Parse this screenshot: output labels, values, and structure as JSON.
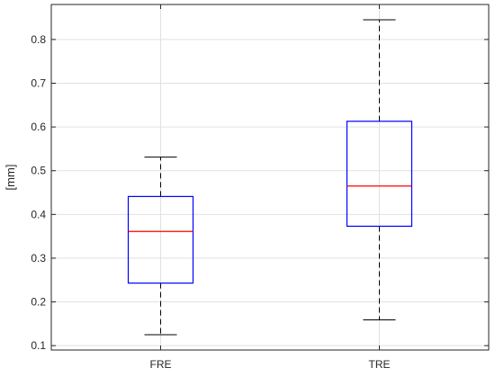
{
  "chart_data": {
    "type": "boxplot",
    "title": "",
    "xlabel": "",
    "ylabel": "[mm]",
    "ylim": [
      0.09,
      0.88
    ],
    "yticks": [
      0.1,
      0.2,
      0.3,
      0.4,
      0.5,
      0.6,
      0.7,
      0.8
    ],
    "ytick_labels": [
      "0.1",
      "0.2",
      "0.3",
      "0.4",
      "0.5",
      "0.6",
      "0.7",
      "0.8"
    ],
    "grid": true,
    "categories": [
      "FRE",
      "TRE"
    ],
    "boxes": [
      {
        "label": "FRE",
        "whisker_low": 0.125,
        "q1": 0.243,
        "median": 0.361,
        "q3": 0.441,
        "whisker_high": 0.531
      },
      {
        "label": "TRE",
        "whisker_low": 0.159,
        "q1": 0.373,
        "median": 0.465,
        "q3": 0.613,
        "whisker_high": 0.845
      }
    ],
    "colors": {
      "box": "#0000ff",
      "median": "#ff0000",
      "whisker": "#000000",
      "grid": "#e1e1e1",
      "axis": "#262626"
    }
  }
}
